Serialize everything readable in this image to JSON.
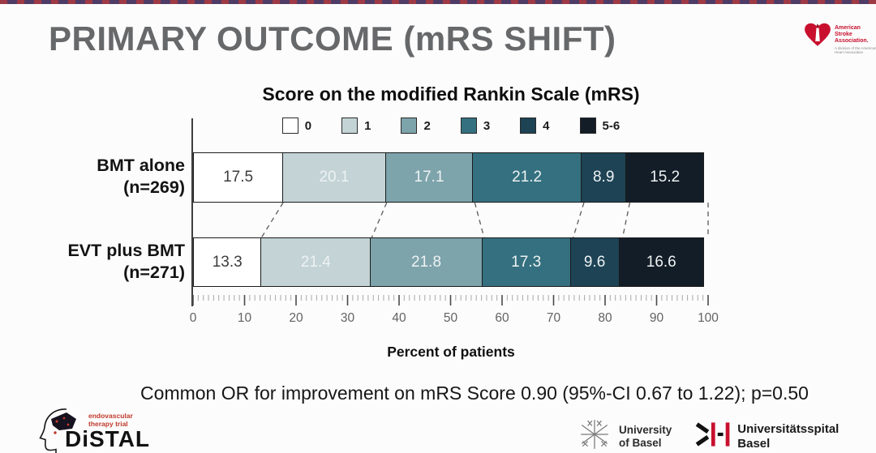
{
  "slide": {
    "title": "PRIMARY OUTCOME (mRS SHIFT)",
    "footer_stat": "Common OR for improvement on mRS Score 0.90 (95%-CI 0.67 to 1.22); p=0.50"
  },
  "asa_logo": {
    "org": "American Stroke Association.",
    "division": "A division of the American Heart Association"
  },
  "chart_data": {
    "type": "bar",
    "orientation": "horizontal-stacked",
    "title": "Score on the modified Rankin Scale (mRS)",
    "xlabel": "Percent of patients",
    "xlim": [
      0,
      100
    ],
    "xticks": [
      0,
      10,
      20,
      30,
      40,
      50,
      60,
      70,
      80,
      90,
      100
    ],
    "minor_tick_step": 1,
    "legend_position": "top",
    "legend": [
      {
        "label": "0",
        "color": "#ffffff"
      },
      {
        "label": "1",
        "color": "#c3d3d6"
      },
      {
        "label": "2",
        "color": "#7da3ab"
      },
      {
        "label": "3",
        "color": "#34707f"
      },
      {
        "label": "4",
        "color": "#1d4355"
      },
      {
        "label": "5-6",
        "color": "#121d27"
      }
    ],
    "groups": [
      {
        "label": "BMT alone",
        "sublabel": "(n=269)",
        "values": [
          17.5,
          20.1,
          17.1,
          21.2,
          8.9,
          15.2
        ]
      },
      {
        "label": "EVT plus BMT",
        "sublabel": "(n=271)",
        "values": [
          13.3,
          21.4,
          21.8,
          17.3,
          9.6,
          16.6
        ]
      }
    ]
  },
  "footer_logos": {
    "distal": {
      "tagline_line1": "endovascular",
      "tagline_line2": "therapy trial",
      "name": "DiSTAL"
    },
    "university_basel": {
      "line1": "University",
      "line2": "of Basel"
    },
    "unispital_basel": {
      "line1": "Universitätsspital",
      "line2": "Basel"
    }
  }
}
